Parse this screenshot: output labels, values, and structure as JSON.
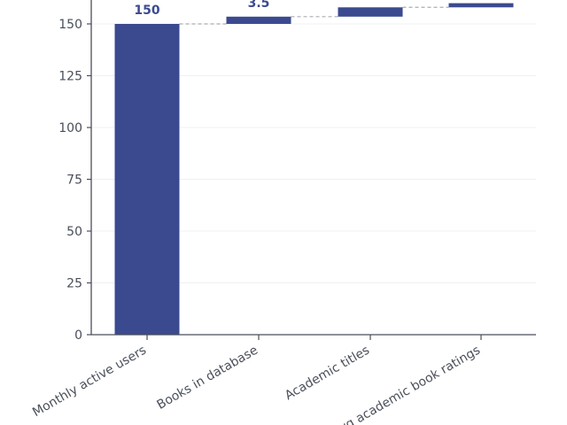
{
  "chart_data": {
    "type": "waterfall",
    "categories": [
      "Monthly active users",
      "Books in database",
      "Academic titles",
      "Avg academic book ratings"
    ],
    "start_values": [
      0,
      150,
      153.5,
      158
    ],
    "end_values": [
      150,
      153.5,
      158,
      160
    ],
    "data_labels": [
      "150",
      "3.5",
      "",
      ""
    ],
    "yticks": [
      0,
      25,
      50,
      75,
      100,
      125,
      150
    ],
    "ylim": [
      0,
      162
    ],
    "grid": true,
    "bar_color": "#3b4a8f",
    "connector_color": "#a9adb3"
  }
}
